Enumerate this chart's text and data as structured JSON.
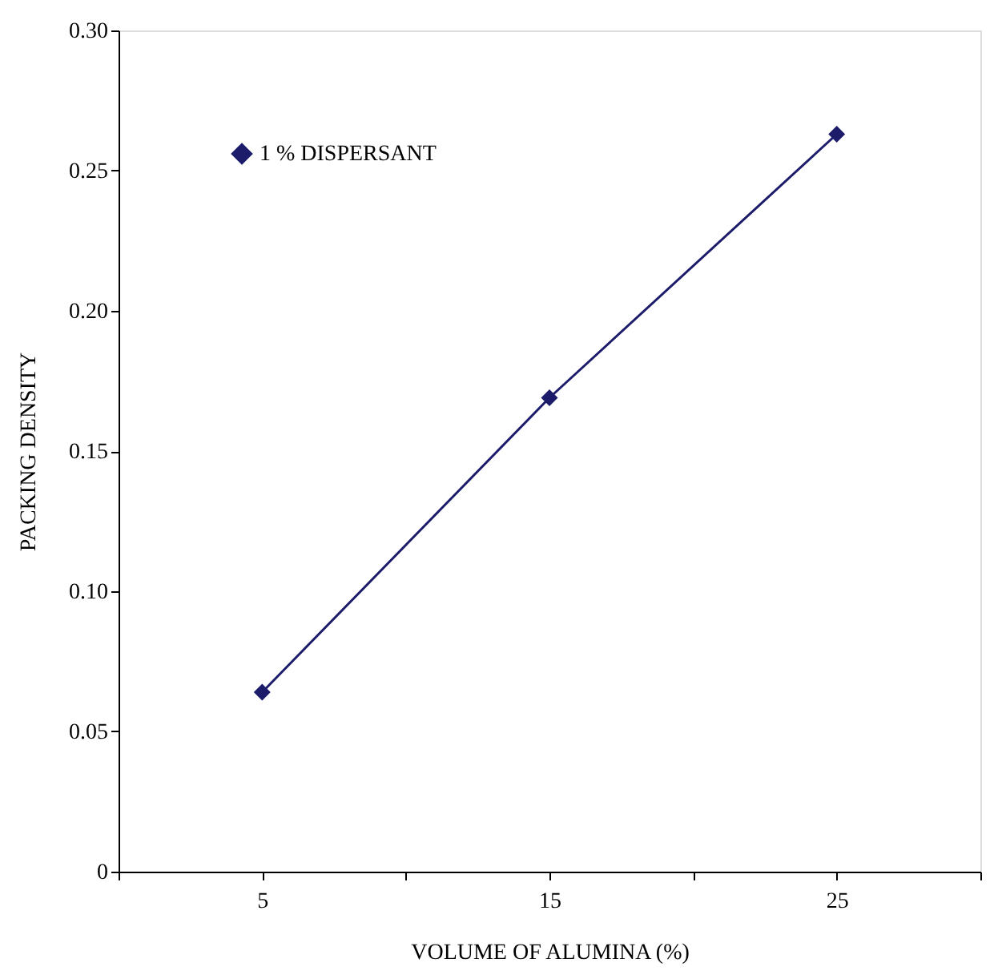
{
  "chart_data": {
    "type": "line",
    "xlabel": "VOLUME OF  ALUMINA (%)",
    "ylabel": "PACKING  DENSITY",
    "x": [
      5,
      15,
      25
    ],
    "series": [
      {
        "name": "1 % DISPERSANT",
        "color": "#1c1c6b",
        "values": [
          0.064,
          0.169,
          0.263
        ]
      }
    ],
    "xlim": [
      0,
      30
    ],
    "xticks": [
      {
        "value": 0,
        "label": null
      },
      5,
      {
        "value": 10,
        "label": null
      },
      15,
      {
        "value": 20,
        "label": null
      },
      25,
      {
        "value": 30,
        "label": null
      }
    ],
    "ylim": [
      0,
      0.3
    ],
    "yticks": [
      0,
      0.05,
      {
        "value": 0.1,
        "label": "0.10"
      },
      0.15,
      {
        "value": 0.2,
        "label": "0.20"
      },
      0.25,
      {
        "value": 0.3,
        "label": "0.30"
      }
    ],
    "marker": "diamond",
    "line_style": "solid",
    "grid": false,
    "legend": "top left"
  }
}
